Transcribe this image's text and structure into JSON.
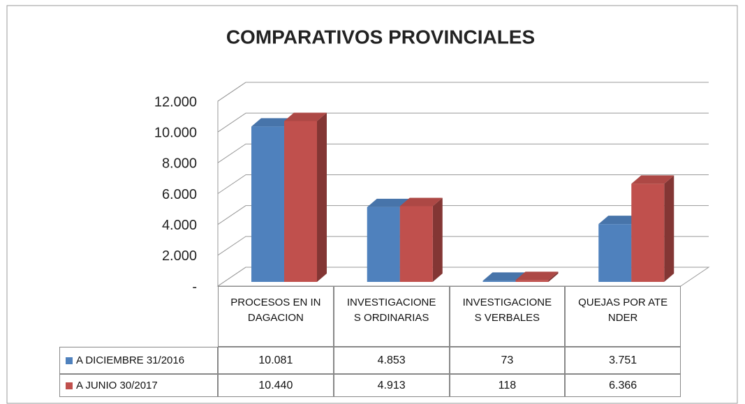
{
  "chart_data": {
    "type": "bar3d",
    "title": "COMPARATIVOS PROVINCIALES",
    "categories": [
      "PROCESOS EN INDAGACION",
      "INVESTIGACIONES ORDINARIAS",
      "INVESTIGACIONES VERBALES",
      "QUEJAS POR ATENDER"
    ],
    "series": [
      {
        "name": "A DICIEMBRE 31/2016",
        "color": "#4f81bd",
        "values": [
          10081,
          4853,
          73,
          3751
        ],
        "value_labels": [
          "10.081",
          "4.853",
          "73",
          "3.751"
        ]
      },
      {
        "name": "A JUNIO 30/2017",
        "color": "#c0504d",
        "values": [
          10440,
          4913,
          118,
          6366
        ],
        "value_labels": [
          "10.440",
          "4.913",
          "118",
          "6.366"
        ]
      }
    ],
    "ylim": [
      0,
      12000
    ],
    "yticks": [
      {
        "value": 0,
        "label": "-"
      },
      {
        "value": 2000,
        "label": "2.000"
      },
      {
        "value": 4000,
        "label": "4.000"
      },
      {
        "value": 6000,
        "label": "6.000"
      },
      {
        "value": 8000,
        "label": "8.000"
      },
      {
        "value": 10000,
        "label": "10.000"
      },
      {
        "value": 12000,
        "label": "12.000"
      }
    ],
    "grid": true
  }
}
